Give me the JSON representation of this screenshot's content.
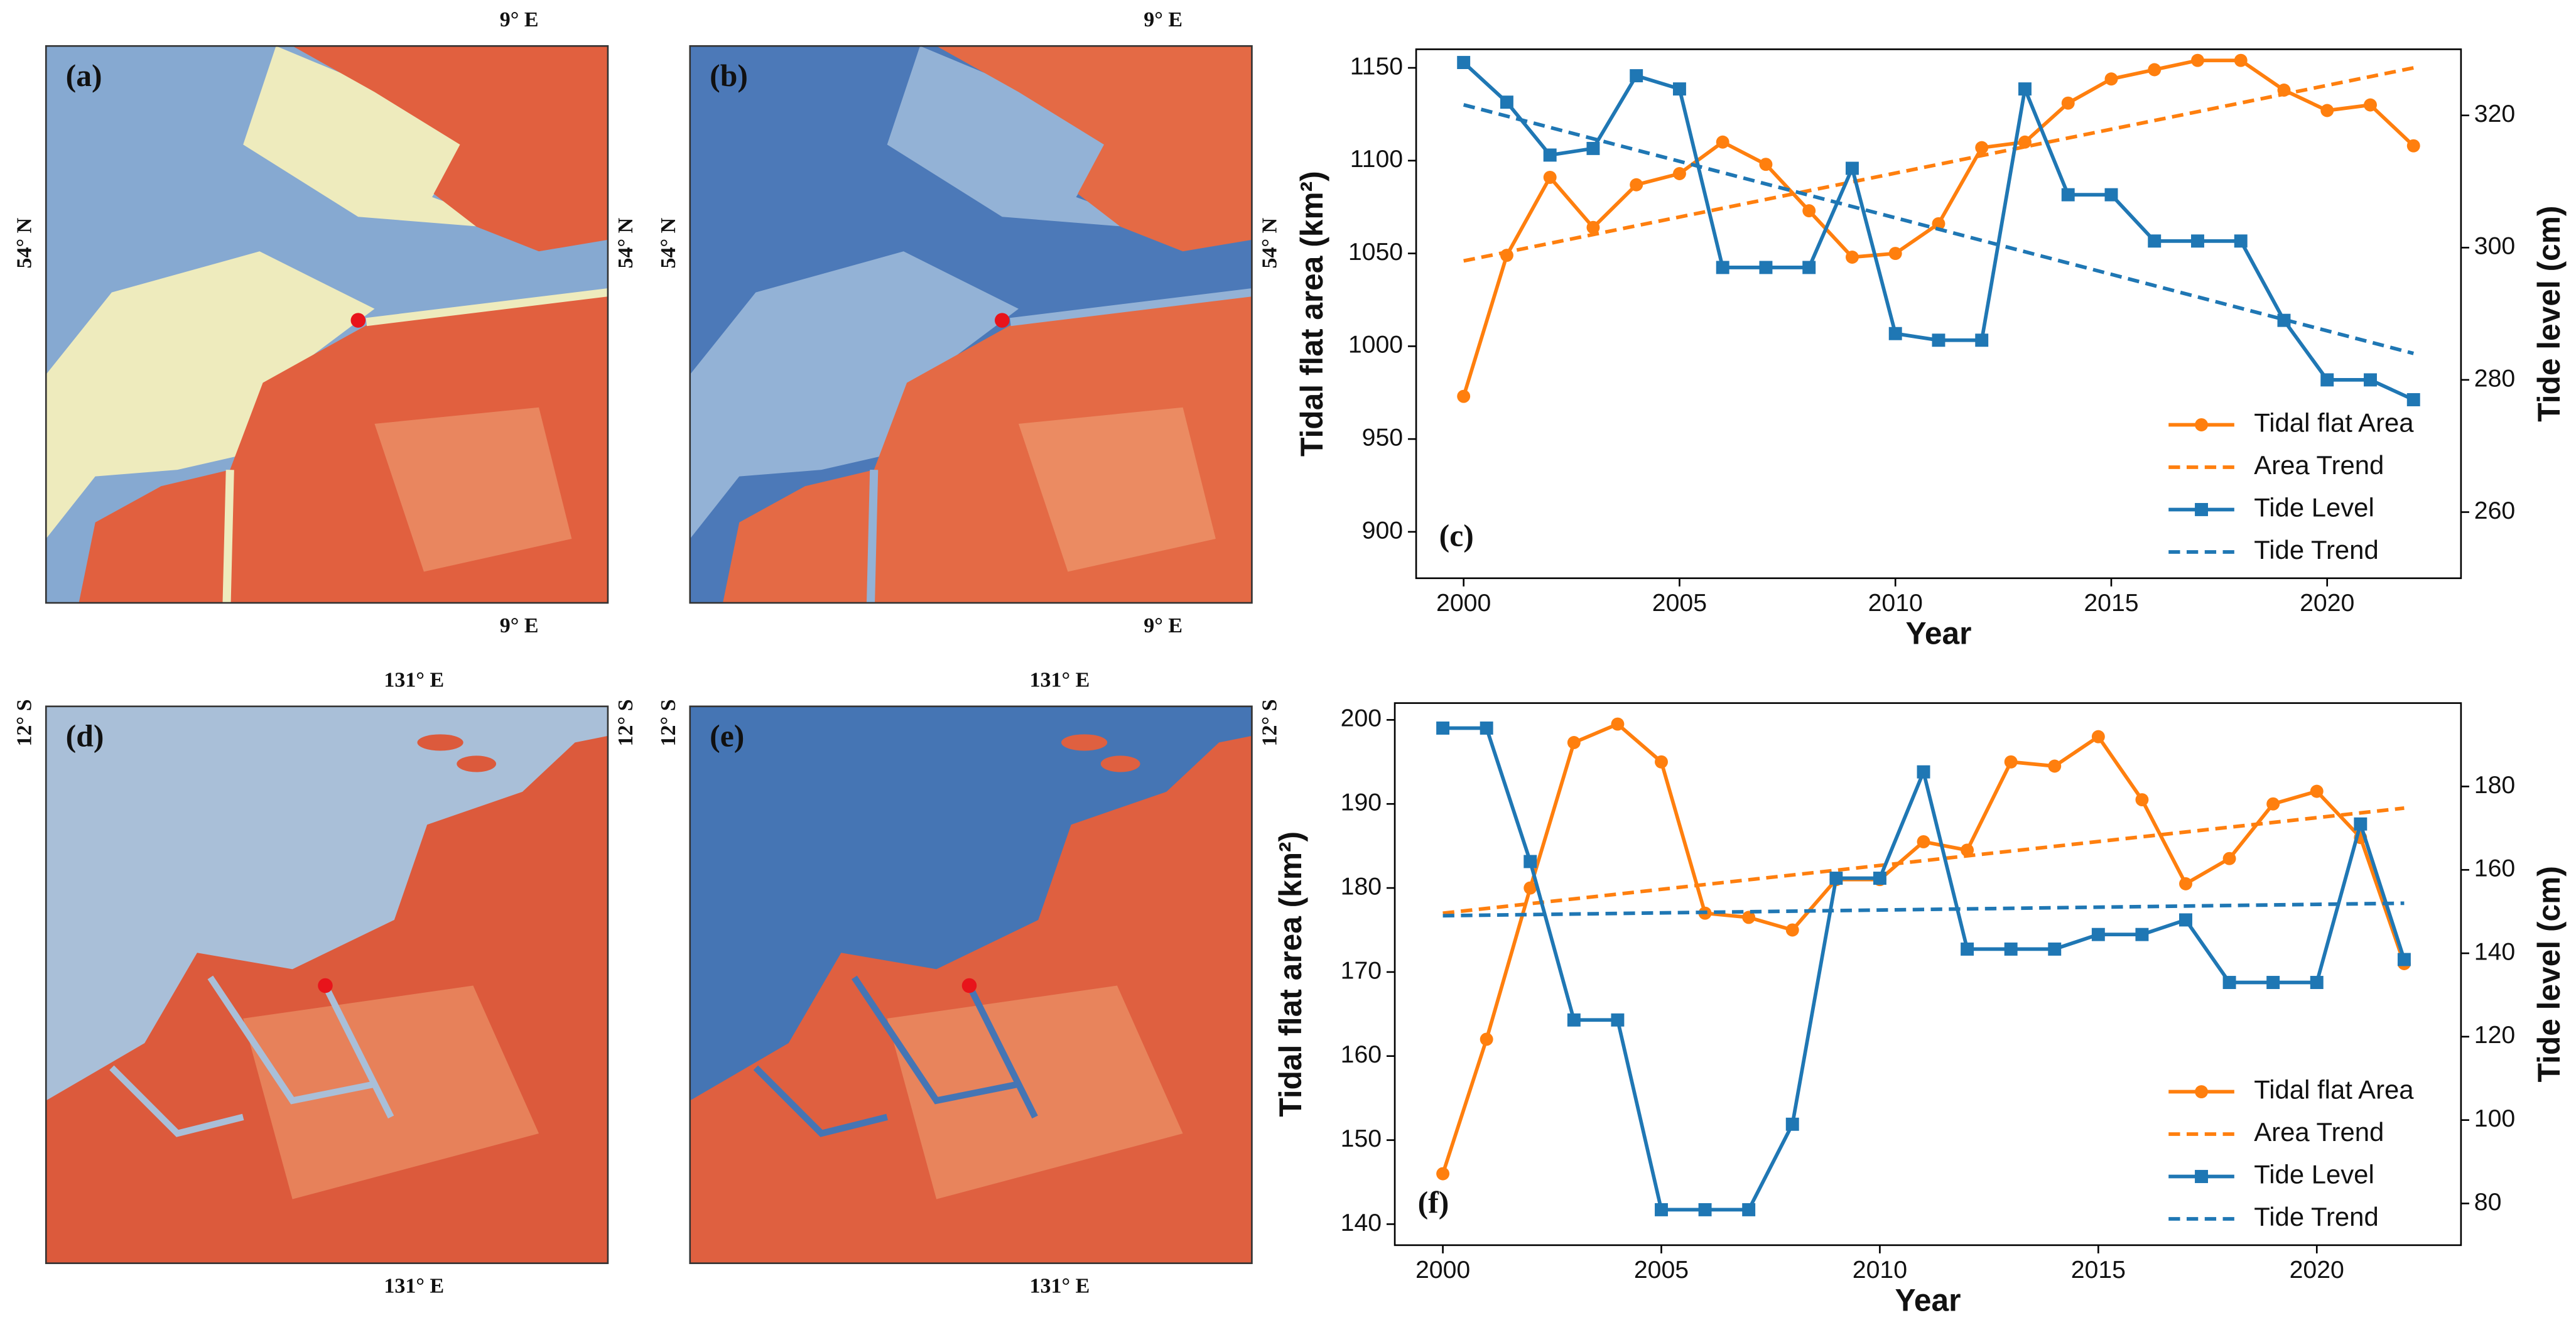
{
  "maps": [
    {
      "label": "(a)",
      "top": "9° E",
      "bottom": "9° E",
      "left": "54° N",
      "right": "54° N"
    },
    {
      "label": "(b)",
      "top": "9° E",
      "bottom": "9° E",
      "left": "54° N",
      "right": "54° N"
    },
    {
      "label": "(d)",
      "top": "131° E",
      "bottom": "131° E",
      "left": "12° S",
      "right": "12° S"
    },
    {
      "label": "(e)",
      "top": "131° E",
      "bottom": "131° E",
      "left": "12° S",
      "right": "12° S"
    }
  ],
  "chart_data": [
    {
      "type": "line",
      "annotation": "(c)",
      "xlabel": "Year",
      "ylabel": "Tidal flat area (km²)",
      "y2label": "Tide level (cm)",
      "x": [
        2000,
        2001,
        2002,
        2003,
        2004,
        2005,
        2006,
        2007,
        2008,
        2009,
        2010,
        2011,
        2012,
        2013,
        2014,
        2015,
        2016,
        2017,
        2018,
        2019,
        2020,
        2021,
        2022
      ],
      "xlim": [
        1998.9,
        2023.1
      ],
      "xticks": [
        2000,
        2005,
        2010,
        2015,
        2020
      ],
      "ylim": [
        875,
        1160
      ],
      "yticks": [
        900,
        950,
        1000,
        1050,
        1100,
        1150
      ],
      "y2lim": [
        250,
        330
      ],
      "y2ticks": [
        260,
        280,
        300,
        320
      ],
      "legend": "lower right",
      "series": [
        {
          "name": "Tidal flat Area",
          "color": "#ff7f0e",
          "marker": "circle",
          "axis": "y",
          "values": [
            973,
            1049,
            1091,
            1064,
            1087,
            1093,
            1110,
            1098,
            1073,
            1048,
            1050,
            1066,
            1107,
            1110,
            1131,
            1144,
            1149,
            1154,
            1154,
            1138,
            1127,
            1130,
            1108
          ]
        },
        {
          "name": "Area Trend",
          "color": "#ff7f0e",
          "dash": true,
          "axis": "y",
          "x": [
            2000,
            2022
          ],
          "values": [
            1046,
            1150
          ]
        },
        {
          "name": "Tide Level",
          "color": "#1f77b4",
          "marker": "square",
          "axis": "y2",
          "values": [
            328,
            322,
            314,
            315,
            326,
            324,
            297,
            297,
            297,
            312,
            287,
            286,
            286,
            324,
            308,
            308,
            301,
            301,
            301,
            289,
            280,
            280,
            277
          ]
        },
        {
          "name": "Tide Trend",
          "color": "#1f77b4",
          "dash": true,
          "axis": "y2",
          "x": [
            2000,
            2022
          ],
          "values": [
            321.6,
            284
          ]
        }
      ]
    },
    {
      "type": "line",
      "annotation": "(f)",
      "xlabel": "Year",
      "ylabel": "Tidal flat area (km²)",
      "y2label": "Tide level (cm)",
      "x": [
        2000,
        2001,
        2002,
        2003,
        2004,
        2005,
        2006,
        2007,
        2008,
        2009,
        2010,
        2011,
        2012,
        2013,
        2014,
        2015,
        2016,
        2017,
        2018,
        2019,
        2020,
        2021,
        2022
      ],
      "xlim": [
        1998.9,
        2023.3
      ],
      "xticks": [
        2000,
        2005,
        2010,
        2015,
        2020
      ],
      "ylim": [
        137.5,
        202
      ],
      "yticks": [
        140,
        150,
        160,
        170,
        180,
        190,
        200
      ],
      "y2lim": [
        70,
        200
      ],
      "y2ticks": [
        80,
        100,
        120,
        140,
        160,
        180
      ],
      "legend": "lower right",
      "series": [
        {
          "name": "Tidal flat Area",
          "color": "#ff7f0e",
          "marker": "circle",
          "axis": "y",
          "values": [
            146,
            162,
            180,
            197.3,
            199.5,
            195,
            177,
            176.5,
            175,
            181,
            181,
            185.5,
            184.5,
            195,
            194.5,
            198,
            190.5,
            180.5,
            183.5,
            190,
            191.5,
            186,
            171
          ]
        },
        {
          "name": "Area Trend",
          "color": "#ff7f0e",
          "dash": true,
          "axis": "y",
          "x": [
            2000,
            2022
          ],
          "values": [
            177,
            189.5
          ]
        },
        {
          "name": "Tide Level",
          "color": "#1f77b4",
          "marker": "square",
          "axis": "y2",
          "values": [
            194,
            194,
            162,
            124,
            124,
            78.5,
            78.5,
            78.5,
            99,
            158,
            158,
            183.5,
            141,
            141,
            141,
            144.5,
            144.5,
            148,
            133,
            133,
            133,
            171,
            138.5
          ]
        },
        {
          "name": "Tide Trend",
          "color": "#1f77b4",
          "dash": true,
          "axis": "y2",
          "x": [
            2000,
            2022
          ],
          "values": [
            149,
            152
          ]
        }
      ]
    }
  ]
}
